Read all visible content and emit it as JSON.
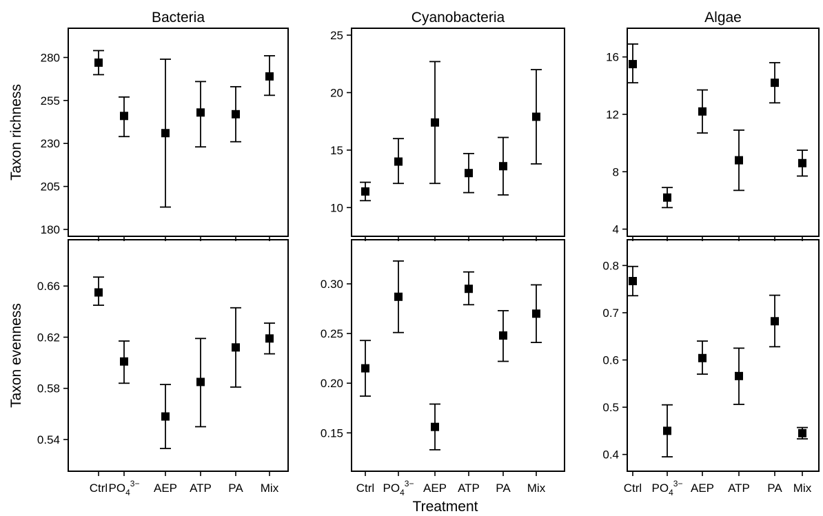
{
  "chart_data": {
    "type": "scatter",
    "xlabel": "Treatment",
    "categories": [
      {
        "main": "Ctrl",
        "sub": "",
        "sup": ""
      },
      {
        "main": "PO",
        "sub": "4",
        "sup": "3−"
      },
      {
        "main": "AEP",
        "sub": "",
        "sup": ""
      },
      {
        "main": "ATP",
        "sub": "",
        "sup": ""
      },
      {
        "main": "PA",
        "sub": "",
        "sup": ""
      },
      {
        "main": "Mix",
        "sub": "",
        "sup": ""
      }
    ],
    "rows": [
      {
        "ylabel": "Taxon richness"
      },
      {
        "ylabel": "Taxon evenness"
      }
    ],
    "panels": [
      {
        "row": 0,
        "col": 0,
        "title": "Bacteria",
        "ylim": [
          176,
          297
        ],
        "yticks": [
          180,
          205,
          230,
          255,
          280
        ],
        "tick_decimals": 0,
        "values": [
          277,
          246,
          236,
          248,
          247,
          269
        ],
        "lower": [
          270,
          234,
          193,
          228,
          231,
          258
        ],
        "upper": [
          284,
          257,
          279,
          266,
          263,
          281
        ]
      },
      {
        "row": 0,
        "col": 1,
        "title": "Cyanobacteria",
        "ylim": [
          7.5,
          25.6
        ],
        "yticks": [
          10,
          15,
          20,
          25
        ],
        "tick_decimals": 0,
        "values": [
          11.4,
          14.0,
          17.4,
          13.0,
          13.6,
          17.9
        ],
        "lower": [
          10.6,
          12.1,
          12.1,
          11.3,
          11.1,
          13.8
        ],
        "upper": [
          12.2,
          16.0,
          22.7,
          14.7,
          16.1,
          22.0
        ]
      },
      {
        "row": 0,
        "col": 2,
        "title": "Algae",
        "ylim": [
          3.5,
          18.0
        ],
        "yticks": [
          4,
          8,
          12,
          16
        ],
        "tick_decimals": 0,
        "values": [
          15.5,
          6.2,
          12.2,
          8.8,
          14.2,
          8.6
        ],
        "lower": [
          14.2,
          5.5,
          10.7,
          6.7,
          12.8,
          7.7
        ],
        "upper": [
          16.9,
          6.9,
          13.7,
          10.9,
          15.6,
          9.5
        ]
      },
      {
        "row": 1,
        "col": 0,
        "title": "",
        "ylim": [
          0.5152,
          0.6962
        ],
        "yticks": [
          0.54,
          0.58,
          0.62,
          0.66
        ],
        "tick_decimals": 2,
        "values": [
          0.655,
          0.601,
          0.558,
          0.585,
          0.612,
          0.619
        ],
        "lower": [
          0.645,
          0.584,
          0.533,
          0.55,
          0.581,
          0.607
        ],
        "upper": [
          0.667,
          0.617,
          0.583,
          0.619,
          0.643,
          0.631
        ]
      },
      {
        "row": 1,
        "col": 1,
        "title": "",
        "ylim": [
          0.1114,
          0.3444
        ],
        "yticks": [
          0.15,
          0.2,
          0.25,
          0.3
        ],
        "tick_decimals": 2,
        "values": [
          0.215,
          0.287,
          0.156,
          0.295,
          0.248,
          0.27
        ],
        "lower": [
          0.187,
          0.251,
          0.133,
          0.279,
          0.222,
          0.241
        ],
        "upper": [
          0.243,
          0.323,
          0.179,
          0.312,
          0.273,
          0.299
        ]
      },
      {
        "row": 1,
        "col": 2,
        "title": "",
        "ylim": [
          0.3645,
          0.8545
        ],
        "yticks": [
          0.4,
          0.5,
          0.6,
          0.7,
          0.8
        ],
        "tick_decimals": 1,
        "values": [
          0.767,
          0.45,
          0.604,
          0.566,
          0.682,
          0.445
        ],
        "lower": [
          0.736,
          0.395,
          0.57,
          0.506,
          0.628,
          0.433
        ],
        "upper": [
          0.798,
          0.505,
          0.64,
          0.625,
          0.737,
          0.457
        ]
      }
    ],
    "grid": false,
    "legend": "none"
  }
}
